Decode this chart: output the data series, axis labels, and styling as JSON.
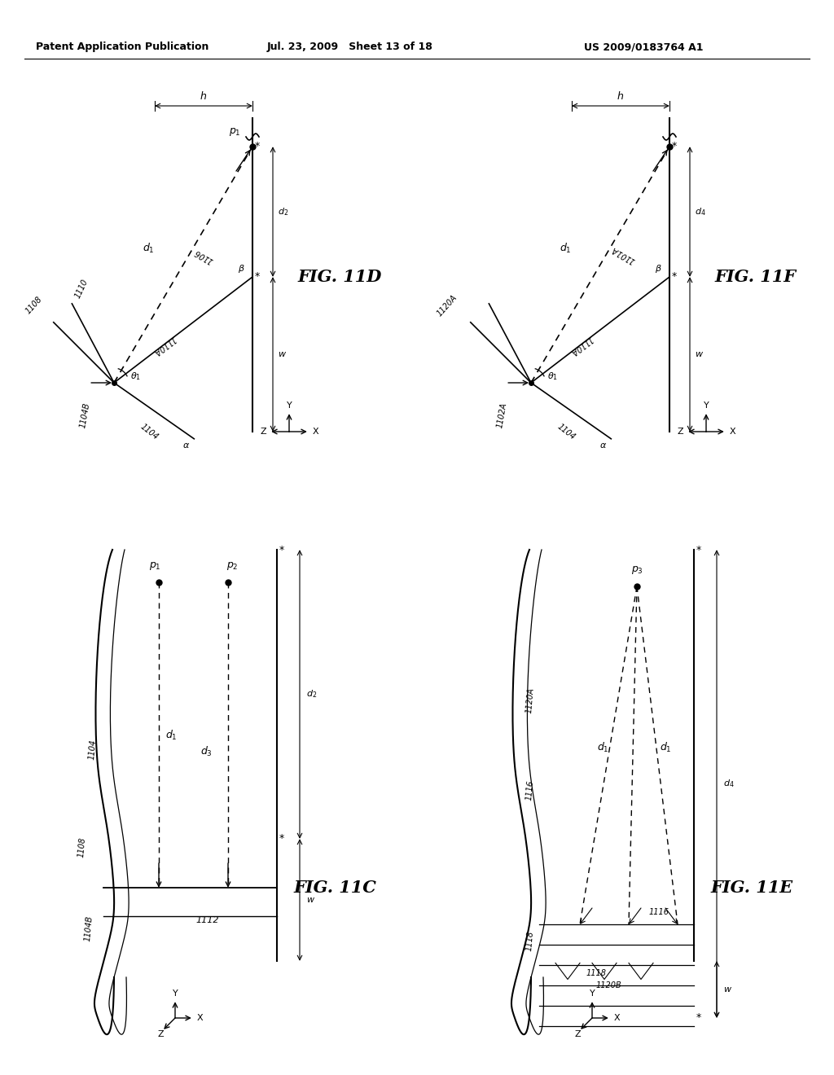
{
  "title_left": "Patent Application Publication",
  "title_center": "Jul. 23, 2009   Sheet 13 of 18",
  "title_right": "US 2009/0183764 A1",
  "fig11D_label": "FIG. 11D",
  "fig11F_label": "FIG. 11F",
  "fig11C_label": "FIG. 11C",
  "fig11E_label": "FIG. 11E",
  "bg_color": "#ffffff",
  "line_color": "#000000"
}
